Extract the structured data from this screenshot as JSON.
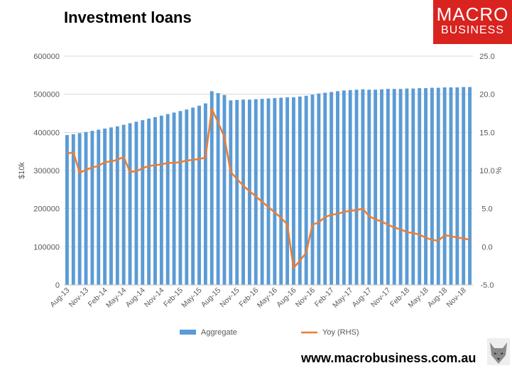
{
  "title": "Investment loans",
  "logo": {
    "line1": "MACRO",
    "line2": "BUSINESS"
  },
  "footer": "www.macrobusiness.com.au",
  "colors": {
    "bar": "#5b9bd5",
    "line": "#ed7d31",
    "grid": "#d9d9d9",
    "logo_bg": "#d9231f"
  },
  "chart_data": {
    "type": "bar",
    "title": "Investment loans",
    "ylabel": "$10k",
    "y2label": "%",
    "ylim": [
      0,
      600000
    ],
    "y2lim": [
      -5,
      25
    ],
    "y_ticks": [
      "0",
      "100000",
      "200000",
      "300000",
      "400000",
      "500000",
      "600000"
    ],
    "y2_ticks": [
      "-5.0",
      "0.0",
      "5.0",
      "10.0",
      "15.0",
      "20.0",
      "25.0"
    ],
    "x_tick_labels": [
      "Aug-13",
      "Nov-13",
      "Feb-14",
      "May-14",
      "Aug-14",
      "Nov-14",
      "Feb-15",
      "May-15",
      "Aug-15",
      "Nov-15",
      "Feb-16",
      "May-16",
      "Aug-16",
      "Nov-16",
      "Feb-17",
      "May-17",
      "Aug-17",
      "Nov-17",
      "Feb-18",
      "May-18",
      "Aug-18",
      "Nov-18"
    ],
    "legend": [
      "Aggregate",
      "Yoy (RHS)"
    ],
    "legend_position": "bottom",
    "grid": true,
    "categories": [
      "Aug-13",
      "Sep-13",
      "Oct-13",
      "Nov-13",
      "Dec-13",
      "Jan-14",
      "Feb-14",
      "Mar-14",
      "Apr-14",
      "May-14",
      "Jun-14",
      "Jul-14",
      "Aug-14",
      "Sep-14",
      "Oct-14",
      "Nov-14",
      "Dec-14",
      "Jan-15",
      "Feb-15",
      "Mar-15",
      "Apr-15",
      "May-15",
      "Jun-15",
      "Jul-15",
      "Aug-15",
      "Sep-15",
      "Oct-15",
      "Nov-15",
      "Dec-15",
      "Jan-16",
      "Feb-16",
      "Mar-16",
      "Apr-16",
      "May-16",
      "Jun-16",
      "Jul-16",
      "Aug-16",
      "Sep-16",
      "Oct-16",
      "Nov-16",
      "Dec-16",
      "Jan-17",
      "Feb-17",
      "Mar-17",
      "Apr-17",
      "May-17",
      "Jun-17",
      "Jul-17",
      "Aug-17",
      "Sep-17",
      "Oct-17",
      "Nov-17",
      "Dec-17",
      "Jan-18",
      "Feb-18",
      "Mar-18",
      "Apr-18",
      "May-18",
      "Jun-18",
      "Jul-18",
      "Aug-18",
      "Sep-18",
      "Oct-18",
      "Nov-18",
      "Dec-18"
    ],
    "series": [
      {
        "name": "Aggregate",
        "type": "bar",
        "axis": "left",
        "values": [
          393000,
          395000,
          398000,
          401000,
          404000,
          407000,
          410000,
          413000,
          416000,
          420000,
          424000,
          428000,
          432000,
          436000,
          440000,
          444000,
          448000,
          452000,
          456000,
          460000,
          465000,
          470000,
          476000,
          508000,
          503000,
          498000,
          484000,
          485000,
          486000,
          486000,
          487000,
          488000,
          489000,
          490000,
          491000,
          492000,
          492000,
          494000,
          496000,
          499000,
          502000,
          504000,
          506000,
          508000,
          510000,
          511000,
          512000,
          513000,
          512000,
          512000,
          513000,
          514000,
          514000,
          514000,
          515000,
          515000,
          516000,
          516000,
          517000,
          517000,
          518000,
          518000,
          518000,
          519000,
          519000
        ]
      },
      {
        "name": "Yoy (RHS)",
        "type": "line",
        "axis": "right",
        "values": [
          12.2,
          12.4,
          9.7,
          10.1,
          10.4,
          10.6,
          11.1,
          11.2,
          11.4,
          11.8,
          9.8,
          9.9,
          10.3,
          10.6,
          10.7,
          10.8,
          11.0,
          11.0,
          11.1,
          11.3,
          11.4,
          11.5,
          11.7,
          18.1,
          16.3,
          14.4,
          9.8,
          8.9,
          8.0,
          7.3,
          6.6,
          5.9,
          5.2,
          4.5,
          3.8,
          2.9,
          -2.8,
          -1.8,
          -0.8,
          2.9,
          3.2,
          3.9,
          4.2,
          4.3,
          4.6,
          4.7,
          4.8,
          5.0,
          4.0,
          3.6,
          3.3,
          2.9,
          2.5,
          2.3,
          1.9,
          1.8,
          1.6,
          1.2,
          0.9,
          0.8,
          1.5,
          1.4,
          1.2,
          1.1,
          0.9
        ]
      }
    ]
  }
}
